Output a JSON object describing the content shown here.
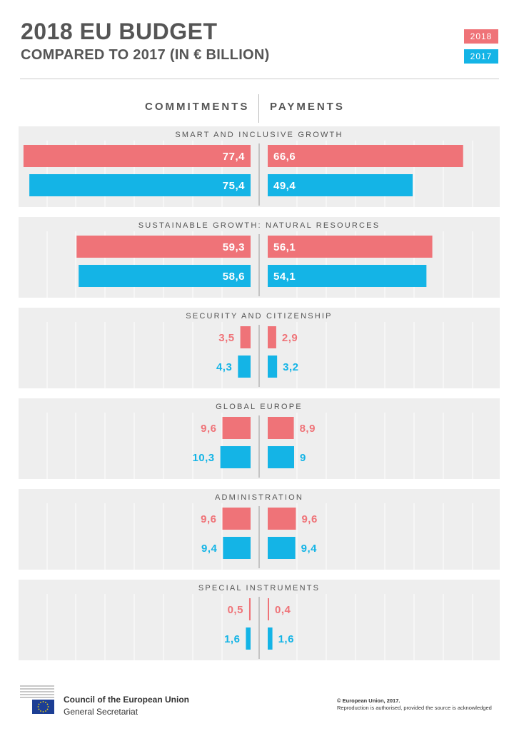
{
  "header": {
    "title": "2018 EU BUDGET",
    "subtitle": "COMPARED TO 2017 (IN € BILLION)"
  },
  "columns": {
    "left": "COMMITMENTS",
    "right": "PAYMENTS"
  },
  "colors": {
    "y2018": "#ef7378",
    "y2017": "#14b4e6",
    "panel": "#eeeeee",
    "text_light": "#ffffff",
    "heading": "#555555"
  },
  "chart_data": {
    "type": "bar",
    "orientation": "horizontal-mirrored",
    "title": "2018 EU BUDGET",
    "subtitle": "COMPARED TO 2017 (IN € BILLION)",
    "legend": [
      "2018",
      "2017"
    ],
    "legend_position": "top-right",
    "max_value": 80,
    "categories": [
      {
        "name": "SMART AND INCLUSIVE GROWTH",
        "commitments": {
          "y2018": 77.4,
          "y2017": 75.4,
          "l2018": "77,4",
          "l2017": "75,4"
        },
        "payments": {
          "y2018": 66.6,
          "y2017": 49.4,
          "l2018": "66,6",
          "l2017": "49,4"
        }
      },
      {
        "name": "SUSTAINABLE GROWTH: NATURAL RESOURCES",
        "commitments": {
          "y2018": 59.3,
          "y2017": 58.6,
          "l2018": "59,3",
          "l2017": "58,6"
        },
        "payments": {
          "y2018": 56.1,
          "y2017": 54.1,
          "l2018": "56,1",
          "l2017": "54,1"
        }
      },
      {
        "name": "SECURITY AND CITIZENSHIP",
        "commitments": {
          "y2018": 3.5,
          "y2017": 4.3,
          "l2018": "3,5",
          "l2017": "4,3"
        },
        "payments": {
          "y2018": 2.9,
          "y2017": 3.2,
          "l2018": "2,9",
          "l2017": "3,2"
        }
      },
      {
        "name": "GLOBAL EUROPE",
        "commitments": {
          "y2018": 9.6,
          "y2017": 10.3,
          "l2018": "9,6",
          "l2017": "10,3"
        },
        "payments": {
          "y2018": 8.9,
          "y2017": 9,
          "l2018": "8,9",
          "l2017": "9"
        }
      },
      {
        "name": "ADMINISTRATION",
        "commitments": {
          "y2018": 9.6,
          "y2017": 9.4,
          "l2018": "9,6",
          "l2017": "9,4"
        },
        "payments": {
          "y2018": 9.6,
          "y2017": 9.4,
          "l2018": "9,6",
          "l2017": "9,4"
        }
      },
      {
        "name": "SPECIAL INSTRUMENTS",
        "commitments": {
          "y2018": 0.5,
          "y2017": 1.6,
          "l2018": "0,5",
          "l2017": "1,6"
        },
        "payments": {
          "y2018": 0.4,
          "y2017": 1.6,
          "l2018": "0,4",
          "l2017": "1,6"
        }
      }
    ]
  },
  "footer": {
    "org_name": "Council of the European Union",
    "org_sub": "General Secretariat",
    "copyright": "© European Union, 2017.",
    "reproduction": "Reproduction is authorised, provided the source is acknowledged"
  }
}
